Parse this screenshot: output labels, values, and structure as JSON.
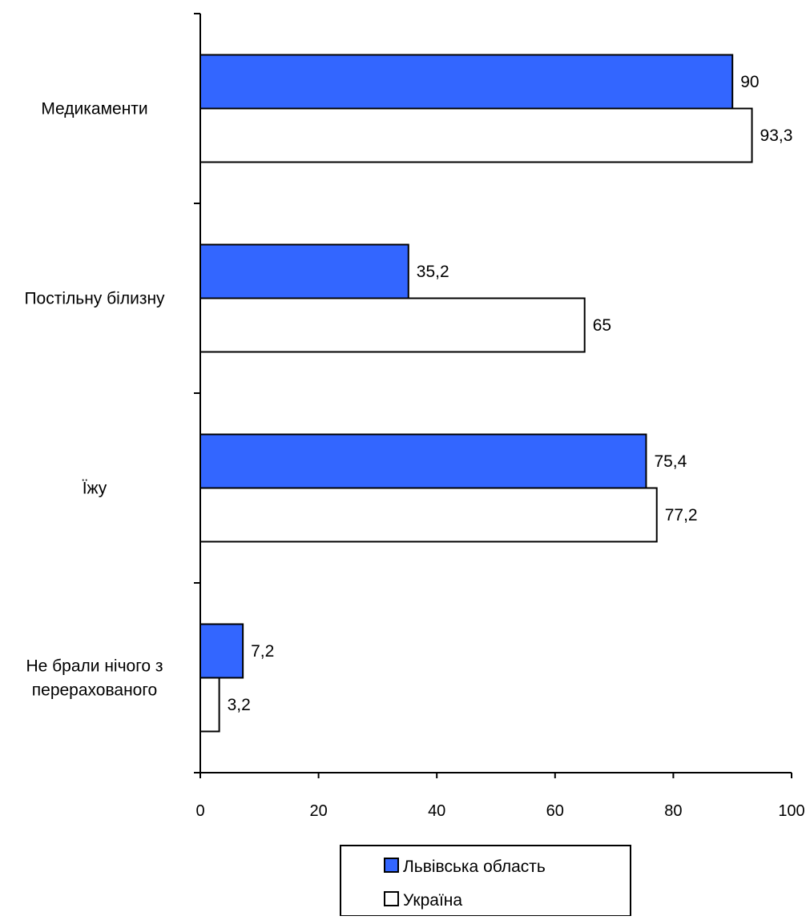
{
  "chart_data": {
    "type": "bar",
    "orientation": "horizontal",
    "categories": [
      [
        "Медикаменти"
      ],
      [
        "Постільну білизну"
      ],
      [
        "Їжу"
      ],
      [
        "Не брали нічого з",
        "перерахованого"
      ]
    ],
    "series": [
      {
        "name": "Львівська область",
        "color": "#3366FF",
        "values": [
          90,
          35.2,
          75.4,
          7.2
        ],
        "labels": [
          "90",
          "35,2",
          "75,4",
          "7,2"
        ]
      },
      {
        "name": "Україна",
        "color": "#FFFFFF",
        "values": [
          93.3,
          65,
          77.2,
          3.2
        ],
        "labels": [
          "93,3",
          "65",
          "77,2",
          "3,2"
        ]
      }
    ],
    "xlim": [
      0,
      100
    ],
    "xticks": [
      0,
      20,
      40,
      60,
      80,
      100
    ],
    "title": "",
    "xlabel": "",
    "ylabel": "",
    "grid": false,
    "legend": "bottom"
  }
}
